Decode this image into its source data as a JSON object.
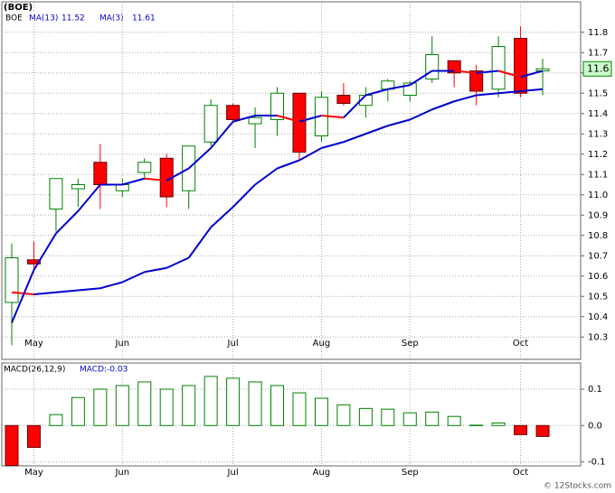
{
  "chart_data": [
    {
      "type": "candlestick",
      "title": "(BOE)",
      "ticker": "BOE",
      "categories": [
        null,
        "May",
        null,
        null,
        null,
        "Jun",
        null,
        null,
        null,
        null,
        "Jul",
        null,
        null,
        null,
        "Aug",
        null,
        null,
        null,
        "Sep",
        null,
        null,
        null,
        null,
        "Oct",
        null
      ],
      "open": [
        10.47,
        10.68,
        10.93,
        11.03,
        11.16,
        11.02,
        11.11,
        11.18,
        11.02,
        11.26,
        11.44,
        11.35,
        11.37,
        11.5,
        11.29,
        11.49,
        11.44,
        11.52,
        11.49,
        11.57,
        11.66,
        11.61,
        11.52,
        11.77,
        11.61
      ],
      "high": [
        10.76,
        10.77,
        11.08,
        11.08,
        11.25,
        11.08,
        11.18,
        11.2,
        11.24,
        11.47,
        11.45,
        11.43,
        11.53,
        11.5,
        11.51,
        11.55,
        11.53,
        11.57,
        11.56,
        11.78,
        11.66,
        11.64,
        11.78,
        11.83,
        11.67
      ],
      "low": [
        10.26,
        10.62,
        10.82,
        10.94,
        10.93,
        10.99,
        11.08,
        10.94,
        10.93,
        11.24,
        11.36,
        11.23,
        11.29,
        11.17,
        11.26,
        11.44,
        11.38,
        11.46,
        11.46,
        11.55,
        11.53,
        11.44,
        11.48,
        11.48,
        11.49
      ],
      "close": [
        10.69,
        10.66,
        11.08,
        11.05,
        11.05,
        11.05,
        11.16,
        10.99,
        11.24,
        11.44,
        11.37,
        11.38,
        11.5,
        11.21,
        11.48,
        11.45,
        11.49,
        11.56,
        11.55,
        11.69,
        11.6,
        11.51,
        11.73,
        11.5,
        11.62
      ],
      "up_color": "#008000",
      "down_color": "#ff0000",
      "series": [
        {
          "name": "MA(13)",
          "value_label": "11.52",
          "color": "#0000cc",
          "down_color": "#ff0000",
          "values": [
            10.52,
            10.51,
            10.52,
            10.53,
            10.54,
            10.57,
            10.62,
            10.64,
            10.69,
            10.84,
            10.94,
            11.05,
            11.13,
            11.17,
            11.23,
            11.26,
            11.3,
            11.34,
            11.37,
            11.42,
            11.46,
            11.49,
            11.5,
            11.51,
            11.52
          ]
        },
        {
          "name": "MA(3)",
          "value_label": "11.61",
          "color": "#0000cc",
          "down_color": "#ff0000",
          "values": [
            10.37,
            10.63,
            10.81,
            10.92,
            11.05,
            11.05,
            11.08,
            11.07,
            11.13,
            11.23,
            11.36,
            11.39,
            11.39,
            11.36,
            11.39,
            11.38,
            11.49,
            11.52,
            11.54,
            11.61,
            11.61,
            11.6,
            11.61,
            11.58,
            11.61
          ]
        }
      ],
      "last_price": {
        "value": 11.62,
        "label": "11.6"
      },
      "ylim": [
        10.19,
        11.95
      ],
      "yticks": [
        10.3,
        10.4,
        10.5,
        10.6,
        10.7,
        10.8,
        10.9,
        {
          "value": 11,
          "label": "11.0"
        },
        11.1,
        11.2,
        11.3,
        11.4,
        11.5,
        11.6,
        11.7,
        11.8
      ],
      "grid": true
    },
    {
      "type": "bar",
      "title": "MACD(26,12,9)",
      "legend_label": "MACD:-0.03",
      "categories": [
        null,
        "May",
        null,
        null,
        null,
        "Jun",
        null,
        null,
        null,
        null,
        "Jul",
        null,
        null,
        null,
        "Aug",
        null,
        null,
        null,
        "Sep",
        null,
        null,
        null,
        null,
        "Oct",
        null
      ],
      "values": [
        -0.11,
        -0.06,
        0.03,
        0.077,
        0.1,
        0.11,
        0.12,
        0.1,
        0.11,
        0.135,
        0.13,
        0.12,
        0.11,
        0.09,
        0.075,
        0.057,
        0.047,
        0.045,
        0.035,
        0.037,
        0.025,
        0.001,
        0.007,
        -0.025,
        -0.03
      ],
      "up_color": "#008000",
      "down_color": "#ff0000",
      "ylim": [
        -0.111,
        0.172
      ],
      "yticks": [
        0.1,
        {
          "value": 0,
          "label": "0.0"
        },
        -0.1
      ],
      "grid": true
    }
  ],
  "credit": "© 12Stocks.com"
}
